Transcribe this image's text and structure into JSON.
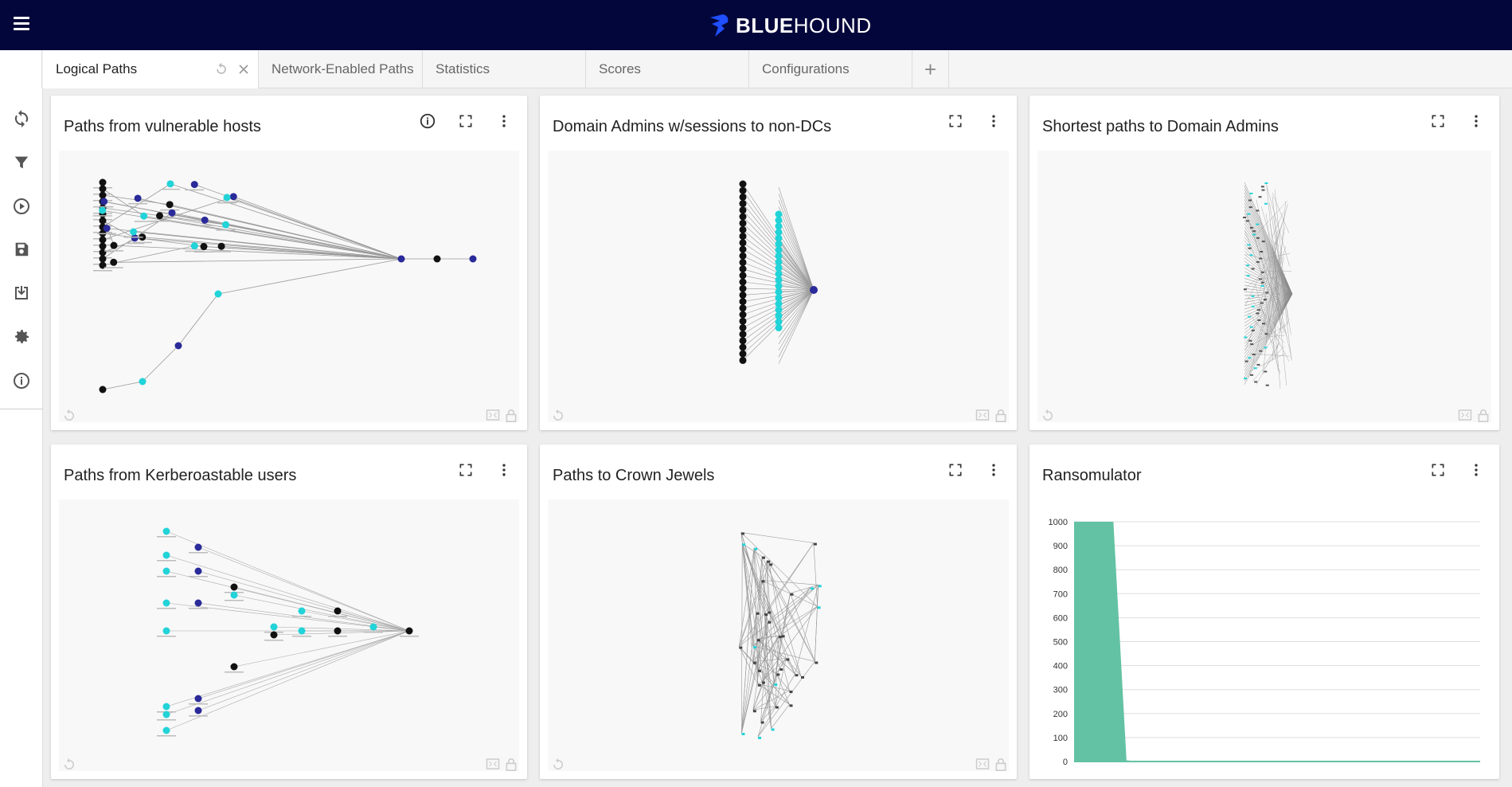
{
  "header": {
    "logo_bold": "BLUE",
    "logo_light": "HOUND",
    "brand_color": "#1f4fff"
  },
  "tabs": [
    {
      "label": "Logical Paths",
      "active": true
    },
    {
      "label": "Network-Enabled Paths",
      "active": false
    },
    {
      "label": "Statistics",
      "active": false
    },
    {
      "label": "Scores",
      "active": false
    },
    {
      "label": "Configurations",
      "active": false
    }
  ],
  "tab_add_label": "+",
  "sidebar": {
    "items": [
      {
        "icon": "refresh-icon"
      },
      {
        "icon": "filter-icon"
      },
      {
        "icon": "play-icon"
      },
      {
        "icon": "save-icon"
      },
      {
        "icon": "import-icon"
      },
      {
        "icon": "gear-icon"
      },
      {
        "icon": "info-icon"
      }
    ]
  },
  "cards": [
    {
      "title": "Paths from vulnerable hosts",
      "has_info": true
    },
    {
      "title": "Domain Admins w/sessions to non-DCs",
      "has_info": false
    },
    {
      "title": "Shortest paths to Domain Admins",
      "has_info": false
    },
    {
      "title": "Paths from Kerberoastable users",
      "has_info": false
    },
    {
      "title": "Paths to Crown Jewels",
      "has_info": false
    },
    {
      "title": "Ransomulator",
      "has_info": false
    }
  ],
  "colors": {
    "node_cyan": "#22d3d8",
    "node_blue": "#2a2a9a",
    "node_black": "#111111",
    "bar_green": "#63c2a4"
  },
  "chart_data": {
    "type": "area",
    "title": "Ransomulator",
    "xlabel": "",
    "ylabel": "",
    "yticks": [
      0,
      100,
      200,
      300,
      400,
      500,
      600,
      700,
      800,
      900,
      1000
    ],
    "ylim": [
      0,
      1000
    ],
    "x": [
      0,
      1,
      2,
      3,
      4,
      5,
      6,
      7,
      8,
      9,
      10,
      11,
      12,
      13,
      14,
      15,
      16,
      17,
      18,
      19,
      20,
      21,
      22,
      23,
      24,
      25,
      26,
      27,
      28,
      29,
      30,
      31
    ],
    "values": [
      1000,
      1000,
      1000,
      1000,
      5,
      0,
      0,
      0,
      0,
      0,
      0,
      0,
      0,
      0,
      0,
      0,
      0,
      0,
      0,
      0,
      0,
      0,
      0,
      0,
      0,
      0,
      0,
      0,
      0,
      0,
      0,
      0
    ],
    "grid": true,
    "color": "#63c2a4"
  }
}
